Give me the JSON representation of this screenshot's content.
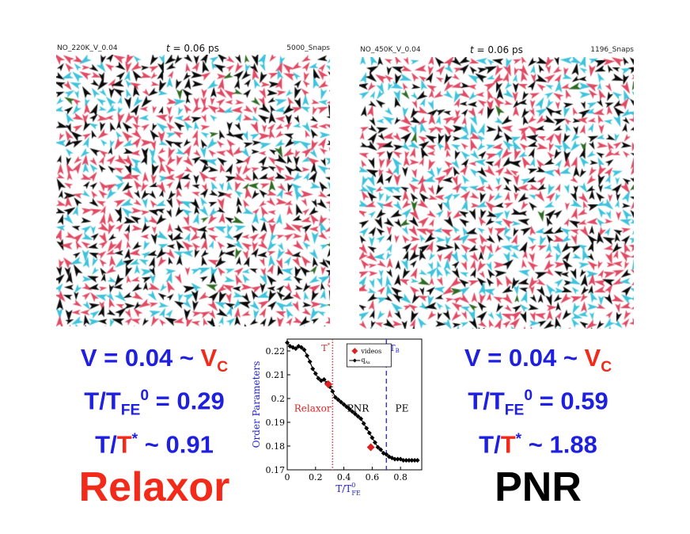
{
  "panels": [
    {
      "file_label": "NO_220K_V_0.04",
      "time_prefix": "t",
      "time_value": "= 0.06 ps",
      "snaps": "5000_Snaps"
    },
    {
      "file_label": "NO_450K_V_0.04",
      "time_prefix": "t",
      "time_value": "= 0.06 ps",
      "snaps": "1196_Snaps"
    }
  ],
  "colors": {
    "red_arrow": "#e04a63",
    "cyan_arrow": "#3fc3dc",
    "black_arrow": "#0a0a0a",
    "green_arrow": "#2f6a22",
    "stat_blue": "#1f1fe0",
    "stat_red": "#f12a1a"
  },
  "left_stats": {
    "v_line": "V = 0.04 ~ ",
    "v_c": "V",
    "v_c_sub": "C",
    "t_fe_line": "T/T",
    "t_fe_sub": "FE",
    "t_fe_sup": "0",
    "t_fe_value": " = 0.29",
    "t_star_line": "T/",
    "t_star_t": "T",
    "t_star_sup": "*",
    "t_star_value": " ~ 0.91",
    "label": "Relaxor",
    "label_color": "#f12a1a"
  },
  "right_stats": {
    "v_line": "V = 0.04 ~ ",
    "v_c": "V",
    "v_c_sub": "C",
    "t_fe_line": "T/T",
    "t_fe_sub": "FE",
    "t_fe_sup": "0",
    "t_fe_value": " = 0.59",
    "t_star_line": "T/",
    "t_star_t": "T",
    "t_star_sup": "*",
    "t_star_value": " ~ 1.88",
    "label": "PNR",
    "label_color": "#000000"
  },
  "chart_data": {
    "type": "line",
    "xlabel": "T/T",
    "xlabel_sub": "FE",
    "xlabel_sup": "0",
    "ylabel": "Order Parameters",
    "xlim": [
      0,
      0.95
    ],
    "ylim": [
      0.17,
      0.225
    ],
    "xticks": [
      0,
      0.2,
      0.4,
      0.6,
      0.8
    ],
    "xtick_labels": [
      "0",
      "0.2",
      "0.4",
      "0.6",
      "0.8"
    ],
    "yticks": [
      0.17,
      0.18,
      0.19,
      0.2,
      0.21,
      0.22
    ],
    "ytick_labels": [
      "0.17",
      "0.18",
      "0.19",
      "0.2",
      "0.21",
      "0.22"
    ],
    "legend": {
      "position": "top-right",
      "entries": [
        "videos",
        "q"
      ],
      "q_sub": "Ax"
    },
    "vlines": [
      {
        "x": 0.32,
        "label": "T",
        "label_sup": "*",
        "color": "#d92222",
        "style": "dotted"
      },
      {
        "x": 0.7,
        "label": "T",
        "label_sub": "B",
        "color": "#2222d9",
        "style": "dashed"
      }
    ],
    "region_labels": [
      {
        "text": "Relaxor",
        "x": 0.18,
        "y": 0.1945,
        "color": "#d92222"
      },
      {
        "text": "PNR",
        "x": 0.5,
        "y": 0.1945,
        "color": "#000000"
      },
      {
        "text": "PE",
        "x": 0.81,
        "y": 0.1945,
        "color": "#000000"
      }
    ],
    "series": [
      {
        "name": "q_Ax",
        "color": "#000000",
        "x": [
          0.0,
          0.02,
          0.04,
          0.06,
          0.08,
          0.1,
          0.12,
          0.14,
          0.16,
          0.18,
          0.2,
          0.22,
          0.24,
          0.26,
          0.28,
          0.3,
          0.32,
          0.34,
          0.36,
          0.38,
          0.4,
          0.42,
          0.44,
          0.46,
          0.48,
          0.5,
          0.52,
          0.54,
          0.56,
          0.58,
          0.6,
          0.62,
          0.64,
          0.66,
          0.68,
          0.7,
          0.72,
          0.74,
          0.76,
          0.78,
          0.8,
          0.82,
          0.84,
          0.86,
          0.88,
          0.9,
          0.92
        ],
        "y": [
          0.2235,
          0.222,
          0.2215,
          0.221,
          0.222,
          0.2215,
          0.2205,
          0.218,
          0.2155,
          0.2125,
          0.2105,
          0.2085,
          0.2075,
          0.208,
          0.2065,
          0.205,
          0.203,
          0.2005,
          0.1995,
          0.1985,
          0.1975,
          0.1965,
          0.1955,
          0.1945,
          0.1935,
          0.1925,
          0.1915,
          0.1895,
          0.1875,
          0.1855,
          0.1835,
          0.1815,
          0.1795,
          0.1785,
          0.177,
          0.1765,
          0.1755,
          0.175,
          0.1745,
          0.1745,
          0.1745,
          0.174,
          0.174,
          0.174,
          0.174,
          0.174,
          0.174
        ]
      },
      {
        "name": "videos",
        "color": "#d92222",
        "marker": "diamond",
        "x": [
          0.29,
          0.59
        ],
        "y": [
          0.206,
          0.1795
        ]
      }
    ]
  }
}
